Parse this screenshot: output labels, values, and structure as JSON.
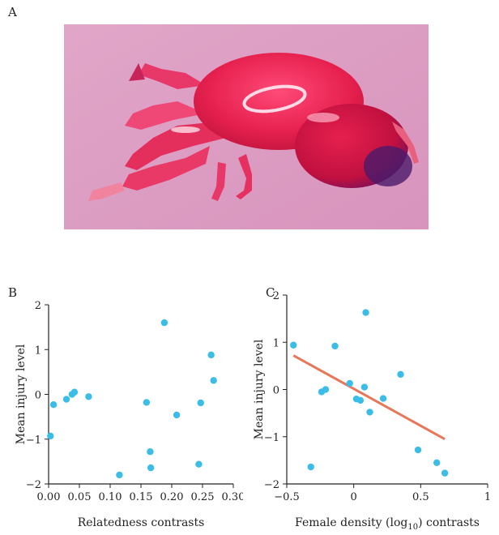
{
  "figure": {
    "panel_a_label": "A",
    "panel_b_label": "B",
    "panel_c_label": "C",
    "photo_subject": "insect-photo"
  },
  "chart_data": [
    {
      "type": "scatter",
      "panel": "B",
      "xlabel": "Relatedness contrasts",
      "ylabel": "Mean injury level",
      "xlim": [
        0,
        0.3
      ],
      "ylim": [
        -2,
        2
      ],
      "xticks": [
        0.0,
        0.05,
        0.1,
        0.15,
        0.2,
        0.25,
        0.3
      ],
      "xtick_labels": [
        "0.00",
        "0.05",
        "0.10",
        "0.15",
        "0.20",
        "0.25",
        "0.30"
      ],
      "yticks": [
        -2,
        -1,
        0,
        1,
        2
      ],
      "ytick_labels": [
        "−2",
        "−1",
        "0",
        "1",
        "2"
      ],
      "point_color": "#3bbde8",
      "points": [
        {
          "x": 0.003,
          "y": -0.93
        },
        {
          "x": 0.008,
          "y": -0.23
        },
        {
          "x": 0.029,
          "y": -0.11
        },
        {
          "x": 0.038,
          "y": 0.0
        },
        {
          "x": 0.042,
          "y": 0.05
        },
        {
          "x": 0.065,
          "y": -0.05
        },
        {
          "x": 0.115,
          "y": -1.8
        },
        {
          "x": 0.159,
          "y": -0.18
        },
        {
          "x": 0.165,
          "y": -1.28
        },
        {
          "x": 0.166,
          "y": -1.64
        },
        {
          "x": 0.188,
          "y": 1.6
        },
        {
          "x": 0.208,
          "y": -0.46
        },
        {
          "x": 0.244,
          "y": -1.56
        },
        {
          "x": 0.247,
          "y": -0.19
        },
        {
          "x": 0.264,
          "y": 0.88
        },
        {
          "x": 0.268,
          "y": 0.31
        }
      ]
    },
    {
      "type": "scatter",
      "panel": "C",
      "xlabel": "Female density (log",
      "xlabel_sub": "10",
      "xlabel_end": ") contrasts",
      "ylabel": "Mean injury level",
      "xlim": [
        -0.5,
        1
      ],
      "ylim": [
        -2,
        2
      ],
      "xticks": [
        -0.5,
        0,
        0.5,
        1
      ],
      "xtick_labels": [
        "−0.5",
        "0",
        "0.5",
        "1"
      ],
      "yticks": [
        -2,
        -1,
        0,
        1,
        2
      ],
      "ytick_labels": [
        "−2",
        "−1",
        "0",
        "1",
        "2"
      ],
      "point_color": "#3bbde8",
      "line_color": "#e8775a",
      "trend_line": {
        "x": [
          -0.45,
          0.68
        ],
        "y": [
          0.72,
          -1.05
        ]
      },
      "points": [
        {
          "x": -0.45,
          "y": 0.94
        },
        {
          "x": -0.32,
          "y": -1.64
        },
        {
          "x": -0.24,
          "y": -0.05
        },
        {
          "x": -0.21,
          "y": 0.0
        },
        {
          "x": -0.14,
          "y": 0.92
        },
        {
          "x": -0.03,
          "y": 0.13
        },
        {
          "x": 0.02,
          "y": -0.2
        },
        {
          "x": 0.05,
          "y": -0.23
        },
        {
          "x": 0.08,
          "y": 0.05
        },
        {
          "x": 0.09,
          "y": 1.63
        },
        {
          "x": 0.12,
          "y": -0.48
        },
        {
          "x": 0.22,
          "y": -0.19
        },
        {
          "x": 0.35,
          "y": 0.32
        },
        {
          "x": 0.48,
          "y": -1.28
        },
        {
          "x": 0.62,
          "y": -1.55
        },
        {
          "x": 0.68,
          "y": -1.77
        }
      ]
    }
  ]
}
